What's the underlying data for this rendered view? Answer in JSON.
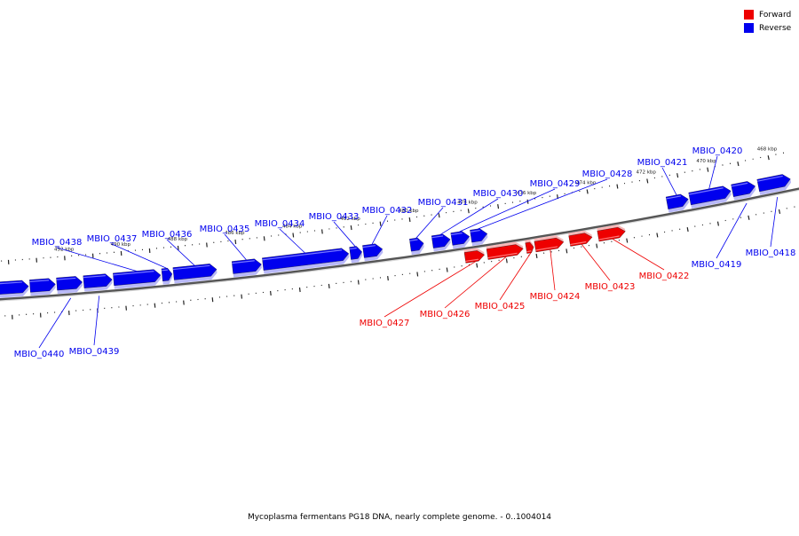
{
  "legend": {
    "items": [
      {
        "label": "Forward",
        "color": "#ee0000"
      },
      {
        "label": "Reverse",
        "color": "#0000ee"
      }
    ]
  },
  "caption": "Mycoplasma fermentans PG18 DNA, nearly complete genome. - 0..1004014",
  "colors": {
    "forward": "#ee0000",
    "reverse": "#0000ee",
    "backbone": "#888888"
  },
  "axis": {
    "unit": "kbp",
    "ticks": [
      {
        "label": "468 kbp",
        "kbp": 468
      },
      {
        "label": "470 kbp",
        "kbp": 470
      },
      {
        "label": "472 kbp",
        "kbp": 472
      },
      {
        "label": "474 kbp",
        "kbp": 474
      },
      {
        "label": "476 kbp",
        "kbp": 476
      },
      {
        "label": "478 kbp",
        "kbp": 478
      },
      {
        "label": "480 kbp",
        "kbp": 480
      },
      {
        "label": "482 kbp",
        "kbp": 482
      },
      {
        "label": "484 kbp",
        "kbp": 484
      },
      {
        "label": "486 kbp",
        "kbp": 486
      },
      {
        "label": "488 kbp",
        "kbp": 488
      },
      {
        "label": "490 kbp",
        "kbp": 490
      },
      {
        "label": "492 kbp",
        "kbp": 492
      }
    ]
  },
  "genes": [
    {
      "name": "MBIO_0418",
      "strand": "reverse",
      "start_kbp": 467.45,
      "end_kbp": 468.5
    },
    {
      "name": "MBIO_0419",
      "strand": "reverse",
      "start_kbp": 468.6,
      "end_kbp": 469.35
    },
    {
      "name": "MBIO_0420",
      "strand": "reverse",
      "start_kbp": 469.4,
      "end_kbp": 470.75
    },
    {
      "name": "MBIO_0421",
      "strand": "reverse",
      "start_kbp": 470.8,
      "end_kbp": 471.5
    },
    {
      "name": "MBIO_0422",
      "strand": "forward",
      "start_kbp": 473.0,
      "end_kbp": 473.9
    },
    {
      "name": "MBIO_0423",
      "strand": "forward",
      "start_kbp": 474.1,
      "end_kbp": 474.85
    },
    {
      "name": "MBIO_0424",
      "strand": "forward",
      "start_kbp": 475.05,
      "end_kbp": 476.0
    },
    {
      "name": "MBIO_0425",
      "strand": "forward",
      "start_kbp": 476.05,
      "end_kbp": 476.3
    },
    {
      "name": "MBIO_0426",
      "strand": "forward",
      "start_kbp": 476.4,
      "end_kbp": 477.6
    },
    {
      "name": "MBIO_0427",
      "strand": "forward",
      "start_kbp": 477.7,
      "end_kbp": 478.35
    },
    {
      "name": "MBIO_0428",
      "strand": "reverse",
      "start_kbp": 477.5,
      "end_kbp": 478.05
    },
    {
      "name": "MBIO_0429",
      "strand": "reverse",
      "start_kbp": 478.1,
      "end_kbp": 478.7
    },
    {
      "name": "MBIO_0430",
      "strand": "reverse",
      "start_kbp": 478.75,
      "end_kbp": 479.35
    },
    {
      "name": "MBIO_0431",
      "strand": "reverse",
      "start_kbp": 479.65,
      "end_kbp": 480.1
    },
    {
      "name": "MBIO_0432",
      "strand": "reverse",
      "start_kbp": 481.05,
      "end_kbp": 481.7
    },
    {
      "name": "MBIO_0433",
      "strand": "reverse",
      "start_kbp": 481.75,
      "end_kbp": 482.15
    },
    {
      "name": "MBIO_0434",
      "strand": "reverse",
      "start_kbp": 482.2,
      "end_kbp": 485.15
    },
    {
      "name": "MBIO_0435",
      "strand": "reverse",
      "start_kbp": 485.2,
      "end_kbp": 486.2
    },
    {
      "name": "MBIO_0436",
      "strand": "reverse",
      "start_kbp": 486.75,
      "end_kbp": 488.25
    },
    {
      "name": "MBIO_0437",
      "strand": "reverse",
      "start_kbp": 488.3,
      "end_kbp": 488.65
    },
    {
      "name": "MBIO_0438",
      "strand": "reverse",
      "start_kbp": 488.7,
      "end_kbp": 490.35
    },
    {
      "name": "MBIO_0439",
      "strand": "reverse",
      "start_kbp": 490.4,
      "end_kbp": 491.4
    },
    {
      "name": "MBIO_0440",
      "strand": "reverse",
      "start_kbp": 491.45,
      "end_kbp": 492.35
    },
    {
      "name": "",
      "strand": "reverse",
      "start_kbp": 492.4,
      "end_kbp": 493.3
    },
    {
      "name": "",
      "strand": "reverse",
      "start_kbp": 493.35,
      "end_kbp": 494.5
    }
  ]
}
